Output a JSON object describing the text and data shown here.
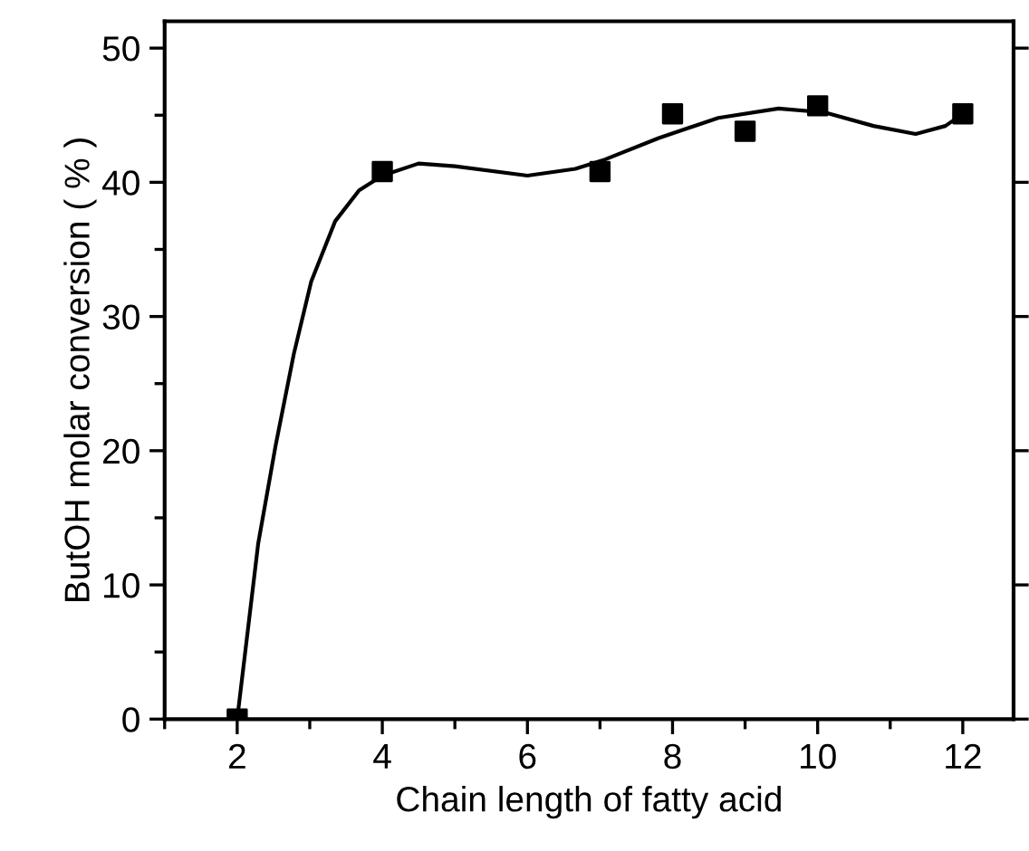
{
  "chart_data": {
    "type": "scatter",
    "xlabel": "Chain length of fatty acid",
    "ylabel": "ButOH molar conversion ( % )",
    "xlim": [
      1,
      12.7
    ],
    "ylim": [
      0,
      52
    ],
    "xticks": [
      2,
      4,
      6,
      8,
      10,
      12
    ],
    "yticks": [
      0,
      10,
      20,
      30,
      40,
      50
    ],
    "grid": false,
    "legend": false,
    "series": [
      {
        "color": "#000000",
        "marker": "square",
        "x": [
          2,
          4,
          7,
          8,
          9,
          10,
          12
        ],
        "values": [
          0,
          40.8,
          40.8,
          45.1,
          43.8,
          45.7,
          45.1
        ]
      },
      {
        "type": "line",
        "color": "#000000",
        "marker": "none",
        "line_style": "solid",
        "x": [
          2,
          2.29,
          2.53,
          2.78,
          3.02,
          3.35,
          3.68,
          4,
          4.5,
          5,
          6,
          6.66,
          7.07,
          7.81,
          8.63,
          9.46,
          10.1,
          10.77,
          11.35,
          11.76,
          12
        ],
        "values": [
          0,
          13.1,
          20.4,
          27.2,
          32.6,
          37.1,
          39.4,
          40.5,
          41.4,
          41.2,
          40.5,
          41.0,
          41.7,
          43.3,
          44.8,
          45.5,
          45.2,
          44.2,
          43.6,
          44.2,
          45.1
        ]
      }
    ]
  }
}
